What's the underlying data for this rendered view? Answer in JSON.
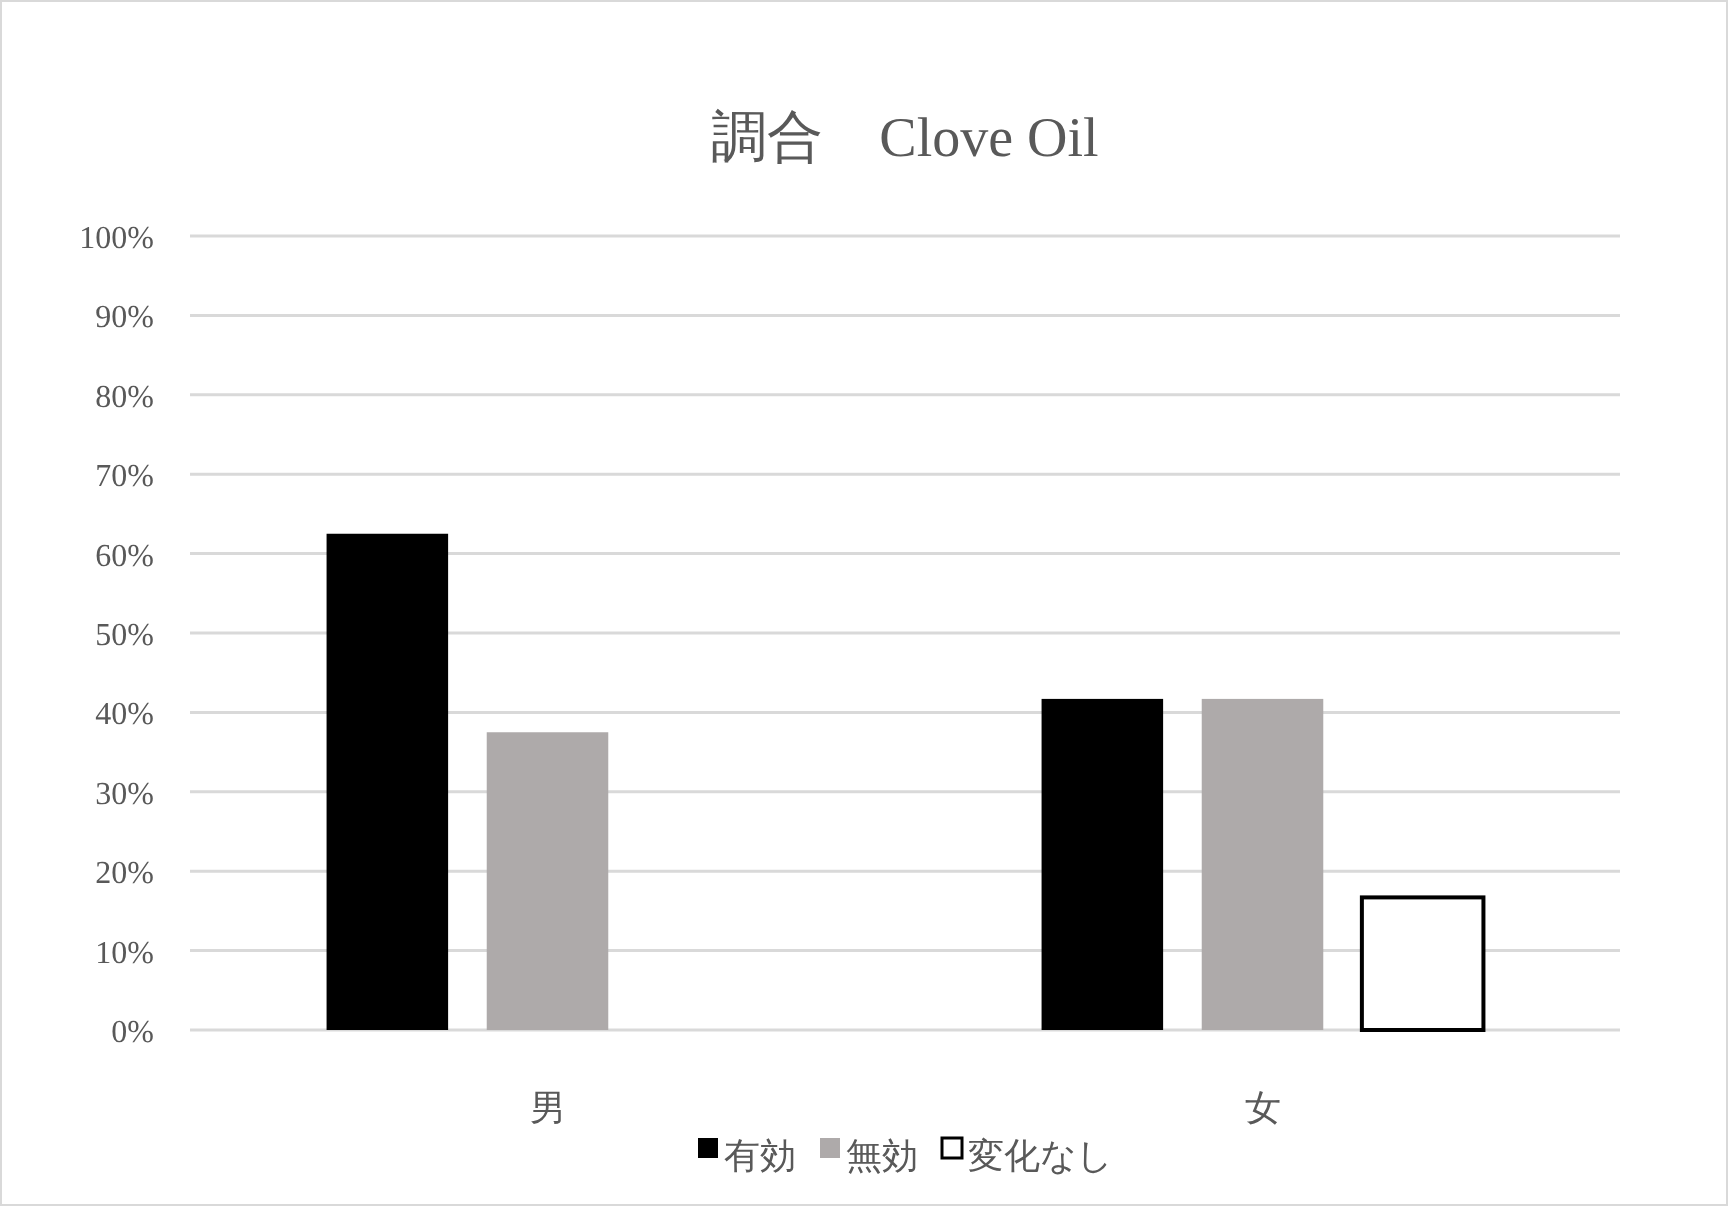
{
  "chart_data": {
    "type": "bar",
    "title": "調合　Clove Oil",
    "categories": [
      "男",
      "女"
    ],
    "series": [
      {
        "name": "有効",
        "color": "#000000",
        "values": [
          62.5,
          41.7
        ]
      },
      {
        "name": "無効",
        "color": "#aeaaaa",
        "values": [
          37.5,
          41.7
        ]
      },
      {
        "name": "変化なし",
        "color": "#ffffff",
        "values": [
          null,
          16.7
        ]
      }
    ],
    "ylim": [
      0,
      100
    ],
    "yticks": [
      {
        "value": 0,
        "label": "0%"
      },
      {
        "value": 10,
        "label": "10%"
      },
      {
        "value": 20,
        "label": "20%"
      },
      {
        "value": 30,
        "label": "30%"
      },
      {
        "value": 40,
        "label": "40%"
      },
      {
        "value": 50,
        "label": "50%"
      },
      {
        "value": 60,
        "label": "60%"
      },
      {
        "value": 70,
        "label": "70%"
      },
      {
        "value": 80,
        "label": "80%"
      },
      {
        "value": 90,
        "label": "90%"
      },
      {
        "value": 100,
        "label": "100%"
      }
    ],
    "grid": "y",
    "legend": "bottom"
  }
}
